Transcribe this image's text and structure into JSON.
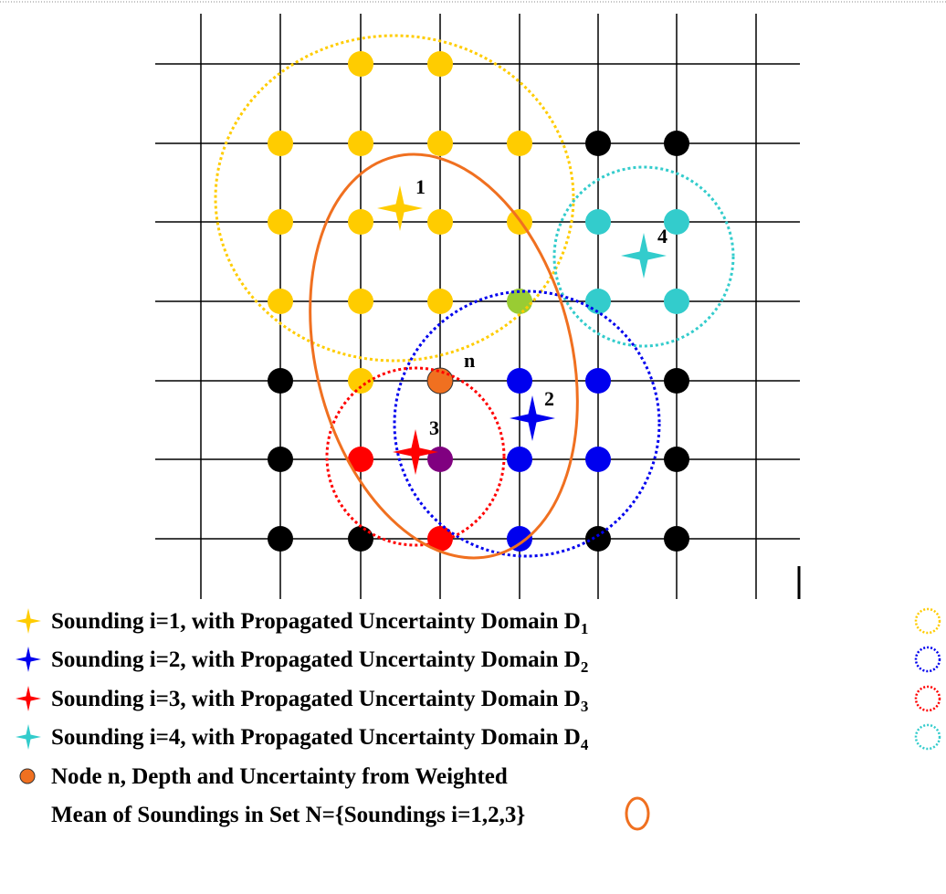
{
  "markers": [
    "1",
    "2",
    "3",
    "4",
    "n"
  ],
  "legend": [
    {
      "text": "Sounding i=1, with Propagated Uncertainty Domain D",
      "sub": "1"
    },
    {
      "text": "Sounding i=2, with Propagated Uncertainty Domain D",
      "sub": "2"
    },
    {
      "text": "Sounding i=3, with Propagated Uncertainty Domain D",
      "sub": "3"
    },
    {
      "text": "Sounding i=4, with Propagated Uncertainty Domain D",
      "sub": "4"
    }
  ],
  "node_legend": [
    "Node n, Depth and Uncertainty from Weighted",
    "Mean of Soundings in Set N={Soundings i=1,2,3}"
  ]
}
